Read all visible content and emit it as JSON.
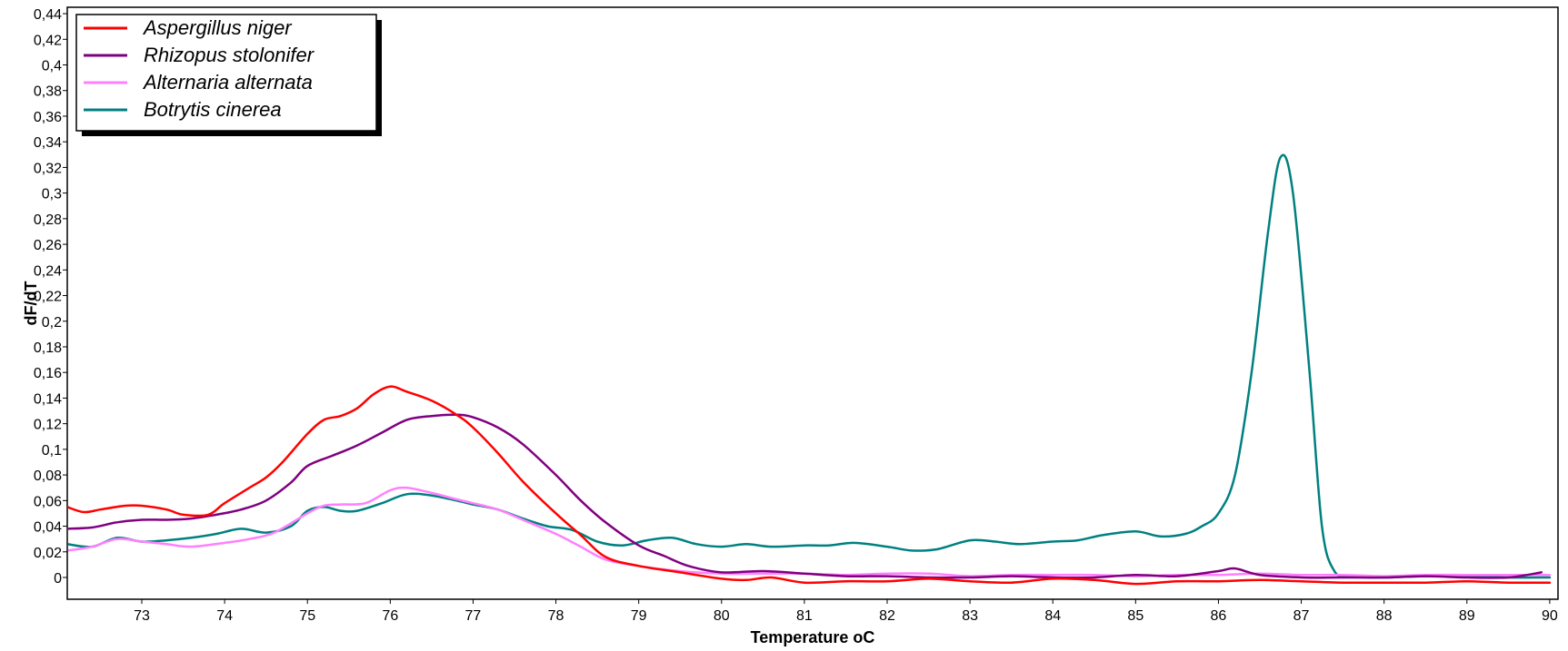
{
  "chart_data": {
    "type": "line",
    "title": "",
    "xlabel": "Temperature oC",
    "ylabel": "dF/dT",
    "xlim": [
      72.1,
      90.1
    ],
    "ylim": [
      -0.017,
      0.445
    ],
    "x_ticks": [
      73,
      74,
      75,
      76,
      77,
      78,
      79,
      80,
      81,
      82,
      83,
      84,
      85,
      86,
      87,
      88,
      89,
      90
    ],
    "y_ticks": [
      0,
      0.02,
      0.04,
      0.06,
      0.08,
      0.1,
      0.12,
      0.14,
      0.16,
      0.18,
      0.2,
      0.22,
      0.24,
      0.26,
      0.28,
      0.3,
      0.32,
      0.34,
      0.36,
      0.38,
      0.4,
      0.42,
      0.44
    ],
    "y_tick_labels": [
      "0",
      "0,02",
      "0,04",
      "0,06",
      "0,08",
      "0,1",
      "0,12",
      "0,14",
      "0,16",
      "0,18",
      "0,2",
      "0,22",
      "0,24",
      "0,26",
      "0,28",
      "0,3",
      "0,32",
      "0,34",
      "0,36",
      "0,38",
      "0,4",
      "0,42",
      "0,44"
    ],
    "grid": false,
    "legend": "top-left",
    "series": [
      {
        "name": "Aspergillus niger",
        "color": "#ff0000",
        "x": [
          72.1,
          72.3,
          72.5,
          72.8,
          73.0,
          73.3,
          73.5,
          73.8,
          74.0,
          74.3,
          74.5,
          74.7,
          75.0,
          75.2,
          75.4,
          75.6,
          75.8,
          76.0,
          76.2,
          76.5,
          76.8,
          77.0,
          77.3,
          77.6,
          78.0,
          78.3,
          78.6,
          79.0,
          79.5,
          80.0,
          80.3,
          80.6,
          81.0,
          81.5,
          82.0,
          82.5,
          83.0,
          83.5,
          84.0,
          84.5,
          85.0,
          85.5,
          86.0,
          86.5,
          87.0,
          87.5,
          88.0,
          88.5,
          89.0,
          89.5,
          90.0
        ],
        "y": [
          0.055,
          0.051,
          0.053,
          0.056,
          0.056,
          0.053,
          0.049,
          0.049,
          0.058,
          0.07,
          0.078,
          0.09,
          0.112,
          0.123,
          0.126,
          0.132,
          0.143,
          0.149,
          0.145,
          0.138,
          0.127,
          0.117,
          0.097,
          0.075,
          0.05,
          0.033,
          0.016,
          0.009,
          0.004,
          -0.001,
          -0.002,
          0.0,
          -0.004,
          -0.003,
          -0.003,
          -0.001,
          -0.003,
          -0.004,
          -0.001,
          -0.002,
          -0.005,
          -0.003,
          -0.003,
          -0.002,
          -0.003,
          -0.004,
          -0.004,
          -0.004,
          -0.003,
          -0.004,
          -0.004
        ]
      },
      {
        "name": "Rhizopus stolonifer",
        "color": "#800080",
        "x": [
          72.1,
          72.4,
          72.7,
          73.0,
          73.3,
          73.6,
          73.9,
          74.2,
          74.5,
          74.8,
          75.0,
          75.3,
          75.6,
          75.9,
          76.2,
          76.5,
          76.8,
          77.0,
          77.3,
          77.6,
          78.0,
          78.3,
          78.6,
          79.0,
          79.3,
          79.6,
          80.0,
          80.5,
          81.0,
          81.5,
          82.0,
          82.5,
          83.0,
          83.5,
          84.0,
          84.5,
          85.0,
          85.5,
          86.0,
          86.2,
          86.5,
          87.0,
          87.5,
          88.0,
          88.5,
          89.0,
          89.5,
          89.9
        ],
        "y": [
          0.038,
          0.039,
          0.043,
          0.045,
          0.045,
          0.046,
          0.049,
          0.053,
          0.06,
          0.074,
          0.087,
          0.095,
          0.103,
          0.113,
          0.123,
          0.126,
          0.127,
          0.125,
          0.117,
          0.104,
          0.08,
          0.06,
          0.043,
          0.025,
          0.017,
          0.009,
          0.004,
          0.005,
          0.003,
          0.001,
          0.001,
          0.0,
          0.0,
          0.001,
          0.0,
          0.0,
          0.002,
          0.001,
          0.005,
          0.007,
          0.002,
          0.0,
          0.0,
          0.0,
          0.001,
          0.0,
          0.0,
          0.004
        ]
      },
      {
        "name": "Alternaria alternata",
        "color": "#ff80ff",
        "x": [
          72.1,
          72.4,
          72.7,
          73.0,
          73.3,
          73.6,
          74.0,
          74.3,
          74.6,
          75.0,
          75.2,
          75.4,
          75.7,
          76.0,
          76.2,
          76.5,
          76.8,
          77.0,
          77.3,
          77.6,
          78.0,
          78.3,
          78.6,
          79.0,
          79.5,
          80.0,
          80.5,
          81.0,
          81.5,
          82.0,
          82.5,
          83.0,
          83.5,
          84.0,
          84.5,
          85.0,
          85.5,
          86.0,
          86.5,
          87.0,
          87.5,
          88.0,
          88.5,
          89.0,
          89.5,
          90.0
        ],
        "y": [
          0.021,
          0.024,
          0.03,
          0.028,
          0.026,
          0.024,
          0.027,
          0.03,
          0.035,
          0.05,
          0.056,
          0.057,
          0.058,
          0.068,
          0.07,
          0.066,
          0.061,
          0.058,
          0.053,
          0.045,
          0.034,
          0.024,
          0.014,
          0.009,
          0.005,
          0.003,
          0.003,
          0.003,
          0.002,
          0.003,
          0.003,
          0.001,
          0.002,
          0.002,
          0.002,
          0.001,
          0.002,
          0.002,
          0.003,
          0.002,
          0.002,
          0.001,
          0.002,
          0.002,
          0.002,
          0.002
        ]
      },
      {
        "name": "Botrytis cinerea",
        "color": "#008080",
        "x": [
          72.1,
          72.4,
          72.7,
          73.0,
          73.3,
          73.6,
          73.9,
          74.2,
          74.5,
          74.8,
          75.0,
          75.2,
          75.4,
          75.6,
          75.9,
          76.2,
          76.5,
          76.8,
          77.0,
          77.3,
          77.6,
          77.9,
          78.2,
          78.5,
          78.8,
          79.1,
          79.4,
          79.7,
          80.0,
          80.3,
          80.6,
          81.0,
          81.3,
          81.6,
          82.0,
          82.3,
          82.6,
          83.0,
          83.3,
          83.6,
          84.0,
          84.3,
          84.6,
          85.0,
          85.3,
          85.6,
          85.8,
          86.0,
          86.2,
          86.4,
          86.6,
          86.75,
          86.9,
          87.1,
          87.25,
          87.4,
          87.6,
          88.0,
          88.5,
          89.0,
          89.5,
          90.0
        ],
        "y": [
          0.026,
          0.024,
          0.031,
          0.028,
          0.029,
          0.031,
          0.034,
          0.038,
          0.035,
          0.04,
          0.052,
          0.055,
          0.052,
          0.052,
          0.058,
          0.065,
          0.064,
          0.06,
          0.057,
          0.053,
          0.046,
          0.04,
          0.037,
          0.028,
          0.025,
          0.029,
          0.031,
          0.026,
          0.024,
          0.026,
          0.024,
          0.025,
          0.025,
          0.027,
          0.024,
          0.021,
          0.022,
          0.029,
          0.028,
          0.026,
          0.028,
          0.029,
          0.033,
          0.036,
          0.032,
          0.034,
          0.04,
          0.05,
          0.08,
          0.16,
          0.27,
          0.328,
          0.3,
          0.16,
          0.04,
          0.005,
          0.001,
          0.0,
          0.001,
          0.001,
          0.0,
          0.0
        ]
      }
    ]
  }
}
